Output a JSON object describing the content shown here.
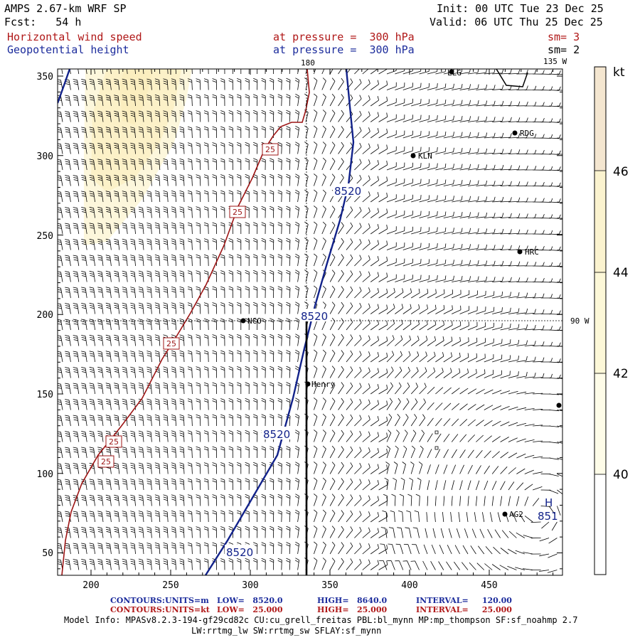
{
  "header": {
    "model": "AMPS 2.67-km WRF SP",
    "init": "Init: 00 UTC Tue 23 Dec 25",
    "fcst": "Fcst:   54 h",
    "valid": "Valid: 06 UTC Thu 25 Dec 25",
    "field1": "Horizontal wind speed",
    "level1": "at pressure =  300 hPa",
    "sm1": "sm= 3",
    "field2": "Geopotential height",
    "level2": "at pressure =  300 hPa",
    "sm2": "sm= 2"
  },
  "map": {
    "lon_labels": [
      "180",
      "135 W",
      "90 W"
    ],
    "x_ticks": [
      "200",
      "250",
      "300",
      "350",
      "400",
      "450"
    ],
    "y_ticks": [
      "350",
      "300",
      "250",
      "200",
      "150",
      "100",
      "50"
    ],
    "stations": [
      "LLG",
      "RDG",
      "KLN",
      "HRC",
      "NCO",
      "Henry",
      "AG2"
    ],
    "height_contour_labels": [
      "8520",
      "8520",
      "8520",
      "8520"
    ],
    "wind_contour_labels": [
      "25",
      "25",
      "25",
      "25",
      "25"
    ],
    "high_marker": "H",
    "high_value": "851"
  },
  "colorbar": {
    "unit": "kt",
    "labels": [
      "46",
      "44",
      "42",
      "40"
    ],
    "colors": [
      "#f4e6d0",
      "#fbf3cf",
      "#fdf8d8",
      "#fefce8",
      "#ffffff"
    ]
  },
  "footer": {
    "row1": {
      "label": "CONTOURS:",
      "units": "UNITS=m",
      "low": "LOW=   8520.0",
      "high": "HIGH=   8640.0",
      "interval": "INTERVAL=     120.00"
    },
    "row2": {
      "label": "CONTOURS:",
      "units": "UNITS=kt",
      "low": "LOW=   25.000",
      "high": "HIGH=   25.000",
      "interval": "INTERVAL=     25.000"
    },
    "model_info1": "Model Info: MPASv8.2.3-194-gf29cd82c CU:cu_grell_freitas PBL:bl_mynn MP:mp_thompson SF:sf_noahmp 2.7",
    "model_info2": "LW:rrtmg_lw SW:rrtmg_sw SFLAY:sf_mynn"
  }
}
